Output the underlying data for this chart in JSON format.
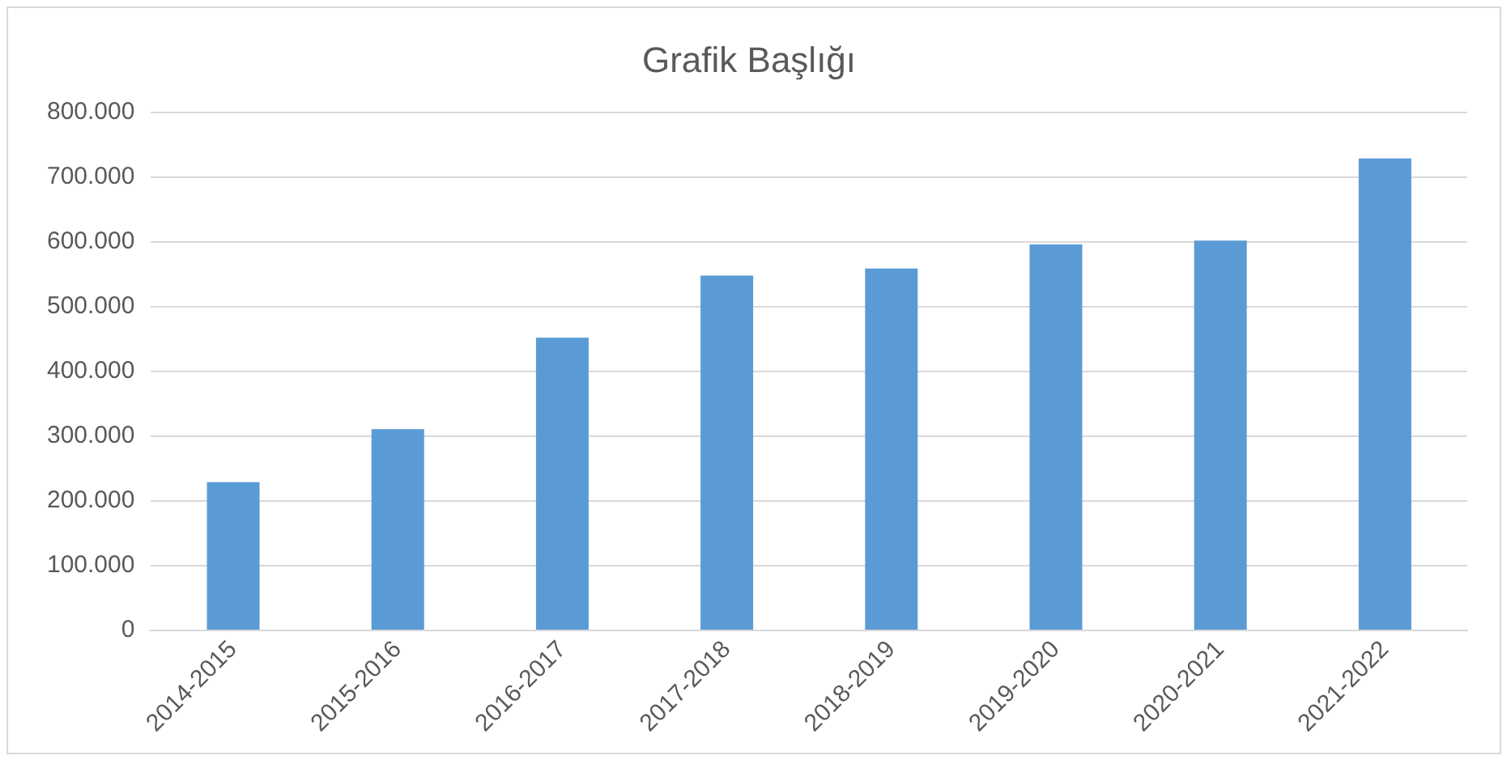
{
  "chart_data": {
    "type": "bar",
    "title": "Grafik Başlığı",
    "categories": [
      "2014-2015",
      "2015-2016",
      "2016-2017",
      "2017-2018",
      "2018-2019",
      "2019-2020",
      "2020-2021",
      "2021-2022"
    ],
    "values": [
      229000,
      311000,
      452000,
      548000,
      559000,
      596000,
      602000,
      729000
    ],
    "color": "#5b9bd5",
    "ylim": [
      0,
      800000
    ],
    "yticks": [
      0,
      {
        "value": 100000,
        "label": "100.000"
      },
      {
        "value": 200000,
        "label": "200.000"
      },
      {
        "value": 300000,
        "label": "300.000"
      },
      {
        "value": 400000,
        "label": "400.000"
      },
      {
        "value": 500000,
        "label": "500.000"
      },
      {
        "value": 600000,
        "label": "600.000"
      },
      {
        "value": 700000,
        "label": "700.000"
      },
      {
        "value": 800000,
        "label": "800.000"
      }
    ],
    "grid": "y",
    "legend": false
  }
}
